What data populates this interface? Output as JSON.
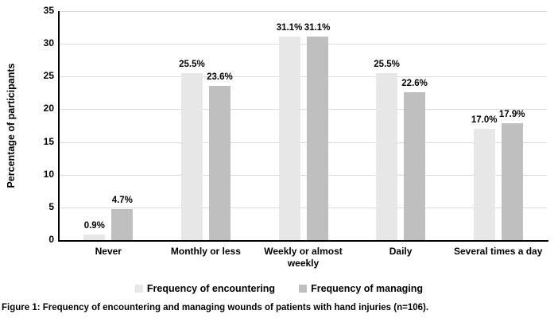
{
  "chart_data": {
    "type": "bar",
    "title": "",
    "categories": [
      "Never",
      "Monthly or less",
      "Weekly or almost weekly",
      "Daily",
      "Several times a day"
    ],
    "series": [
      {
        "name": "Frequency of encountering",
        "color": "#e7e7e7",
        "values": [
          0.9,
          25.5,
          31.1,
          25.5,
          17.0
        ],
        "labels": [
          "0.9%",
          "25.5%",
          "31.1%",
          "25.5%",
          "17.0%"
        ]
      },
      {
        "name": "Frequency of managing",
        "color": "#bfbfbf",
        "values": [
          4.7,
          23.6,
          31.1,
          22.6,
          17.9
        ],
        "labels": [
          "4.7%",
          "23.6%",
          "31.1%",
          "22.6%",
          "17.9%"
        ]
      }
    ],
    "xlabel": "",
    "ylabel": "Percentage of participants",
    "ylim": [
      0,
      35
    ],
    "yticks": [
      0,
      5,
      10,
      15,
      20,
      25,
      30,
      35
    ],
    "grid": true,
    "grid_color": "#dcdcdc",
    "axis_color": "#000000",
    "legend_position": "bottom"
  },
  "caption": {
    "text": "Figure 1: Frequency of encountering and managing wounds of patients with hand injuries (n=106)."
  }
}
